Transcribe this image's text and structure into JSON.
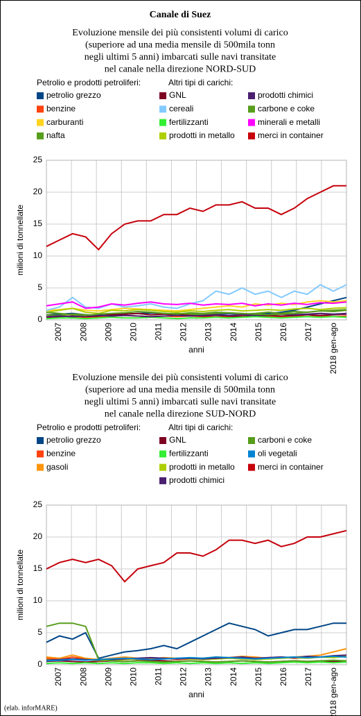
{
  "title": "Canale di Suez",
  "note": "(elab. inforMARE)",
  "chart_data": [
    {
      "type": "line",
      "subtitle": [
        "Evoluzione mensile dei più consistenti volumi di carico",
        "(superiore ad una media mensile di 500mila tonn",
        "negli ultimi 5 anni) imbarcati sulle navi transitate",
        "nel canale nella direzione NORD-SUD"
      ],
      "y_label": "milioni di tonnellate",
      "x_label": "anni",
      "categories": [
        "2007",
        "2008",
        "2009",
        "2010",
        "2011",
        "2012",
        "2013",
        "2014",
        "2015",
        "2016",
        "2017",
        "2018 gen-ago"
      ],
      "ylim": [
        0,
        25
      ],
      "yticks": [
        0,
        5,
        10,
        15,
        20,
        25
      ],
      "grid": true,
      "groups": [
        {
          "title": "Petrolio e prodotti petroliferi:",
          "series": [
            {
              "name": "petrolio grezzo",
              "color": "#004586",
              "values": [
                0.8,
                0.9,
                1,
                0.8,
                0.7,
                0.8,
                0.9,
                1,
                1.1,
                1,
                0.9,
                1,
                0.8,
                0.9,
                1,
                0.9,
                0.8,
                1,
                1.2,
                1.5,
                2,
                2.5,
                3,
                3.5
              ]
            },
            {
              "name": "benzine",
              "color": "#ff420e",
              "values": [
                0.5,
                0.6,
                0.5,
                0.4,
                0.5,
                0.6,
                0.7,
                0.6,
                0.5,
                0.6,
                0.5,
                0.6,
                0.5,
                0.4,
                0.5,
                0.6,
                0.5,
                0.6,
                0.5,
                0.6,
                0.5,
                0.6,
                0.5,
                0.6
              ]
            },
            {
              "name": "carburanti",
              "color": "#ffd320",
              "values": [
                1.5,
                1.6,
                1.8,
                1.5,
                1.4,
                1.6,
                1.8,
                1.7,
                1.6,
                1.5,
                1.4,
                1.6,
                1.8,
                2,
                2.2,
                2,
                2.5,
                2.3,
                2.6,
                2.4,
                2.8,
                3,
                2.8,
                3
              ]
            },
            {
              "name": "nafta",
              "color": "#579d1c",
              "values": [
                0.8,
                0.7,
                0.9,
                0.8,
                0.6,
                0.8,
                0.9,
                1,
                0.8,
                0.9,
                1,
                0.9,
                0.8,
                1,
                1.1,
                0.9,
                1,
                1.2,
                1,
                1.3,
                1.2,
                1.4,
                1.5,
                1.6
              ]
            }
          ]
        },
        {
          "title": "Altri tipi di carichi:",
          "series": [
            {
              "name": "GNL",
              "color": "#7e0021",
              "values": [
                0.4,
                0.5,
                0.6,
                0.5,
                0.6,
                0.8,
                0.9,
                1,
                0.8,
                0.9,
                0.8,
                0.7,
                0.6,
                0.7,
                0.6,
                0.5,
                0.6,
                0.7,
                0.6,
                0.7,
                0.8,
                0.7,
                0.8,
                0.9
              ]
            },
            {
              "name": "cereali",
              "color": "#83caff",
              "values": [
                1.5,
                2,
                3.5,
                2,
                1.8,
                2.5,
                2,
                2.2,
                2.5,
                2,
                1.8,
                2.5,
                3,
                4.5,
                4,
                5,
                4,
                4.5,
                3.5,
                4.5,
                4,
                5.5,
                4.5,
                5.5
              ]
            },
            {
              "name": "fertilizzanti",
              "color": "#33ee33",
              "values": [
                0.2,
                0.3,
                0.3,
                0.2,
                0.3,
                0.4,
                0.3,
                0.3,
                0.4,
                0.3,
                0.2,
                0.3,
                0.3,
                0.4,
                0.3,
                0.4,
                0.5,
                0.4,
                0.3,
                0.4,
                0.5,
                0.4,
                0.5,
                0.4
              ]
            },
            {
              "name": "prodotti in metallo",
              "color": "#aecf00",
              "values": [
                1.2,
                1.5,
                1.8,
                1.2,
                1,
                1.5,
                1.4,
                1.6,
                1.5,
                1.3,
                1.2,
                1.4,
                1.3,
                1.5,
                1.6,
                1.4,
                1.5,
                1.6,
                1.5,
                1.7,
                1.8,
                1.6,
                1.8,
                1.9
              ]
            },
            {
              "name": "prodotti chimici",
              "color": "#4b1f6f",
              "values": [
                0.5,
                0.6,
                0.5,
                0.6,
                0.7,
                0.6,
                0.7,
                0.6,
                0.5,
                0.6,
                0.7,
                0.6,
                0.7,
                0.8,
                0.7,
                0.8,
                0.7,
                0.8,
                0.9,
                0.8,
                0.9,
                1,
                0.9,
                1
              ]
            },
            {
              "name": "carbone e coke",
              "color": "#579d1c",
              "values": [
                1.2,
                1,
                0.8,
                0.7,
                0.9,
                1,
                1.1,
                1.3,
                1.2,
                1,
                0.9,
                1.1,
                1,
                1.2,
                1.1,
                1,
                0.9,
                0.8,
                0.9,
                1,
                1.2,
                1.4,
                1.3,
                1.5
              ]
            },
            {
              "name": "minerali e metalli",
              "color": "#ff00ff",
              "values": [
                2.2,
                2.5,
                2.8,
                1.8,
                2,
                2.5,
                2.3,
                2.6,
                2.8,
                2.5,
                2.4,
                2.6,
                2.3,
                2.5,
                2.4,
                2.6,
                2.2,
                2.5,
                2.3,
                2.6,
                2.4,
                2.7,
                2.6,
                2.8
              ]
            },
            {
              "name": "merci in container",
              "color": "#c5000b",
              "values": [
                11.5,
                12.5,
                13.5,
                13,
                11,
                13.5,
                15,
                15.5,
                15.5,
                16.5,
                16.5,
                17.5,
                17,
                18,
                18,
                18.5,
                17.5,
                17.5,
                16.5,
                17.5,
                19,
                20,
                21,
                21
              ]
            }
          ]
        }
      ]
    },
    {
      "type": "line",
      "subtitle": [
        "Evoluzione mensile dei più consistenti volumi di carico",
        "(superiore ad una media mensile di 500mila tonn",
        "negli ultimi 5 anni) imbarcati sulle navi transitate",
        "nel canale nella direzione SUD-NORD"
      ],
      "y_label": "milioni di tonnellate",
      "x_label": "anni",
      "categories": [
        "2007",
        "2008",
        "2009",
        "2010",
        "2011",
        "2012",
        "2013",
        "2014",
        "2015",
        "2016",
        "2017",
        "2018 gen-ago"
      ],
      "ylim": [
        0,
        25
      ],
      "yticks": [
        0,
        5,
        10,
        15,
        20,
        25
      ],
      "grid": true,
      "groups": [
        {
          "title": "Petrolio e prodotti petroliferi:",
          "series": [
            {
              "name": "petrolio grezzo",
              "color": "#004586",
              "values": [
                3.5,
                4.5,
                4,
                5,
                1,
                1.5,
                2,
                2.2,
                2.5,
                3,
                2.5,
                3.5,
                4.5,
                5.5,
                6.5,
                6,
                5.5,
                4.5,
                5,
                5.5,
                5.5,
                6,
                6.5,
                6.5
              ]
            },
            {
              "name": "benzine",
              "color": "#ff420e",
              "values": [
                1,
                0.8,
                1.2,
                0.9,
                0.7,
                0.9,
                1,
                0.8,
                0.9,
                1,
                0.8,
                0.9,
                1,
                1.1,
                1,
                0.9,
                1,
                1.1,
                1.2,
                1,
                1.1,
                1.2,
                1.3,
                1.4
              ]
            },
            {
              "name": "gasoli",
              "color": "#ff950e",
              "values": [
                1.2,
                1,
                1.5,
                1,
                0.8,
                1,
                1.2,
                1,
                0.9,
                1.1,
                1,
                0.9,
                1,
                1.2,
                1.1,
                1.3,
                1.2,
                1,
                1.1,
                1.2,
                1.3,
                1.5,
                2,
                2.5
              ]
            }
          ]
        },
        {
          "title": "Altri tipi di carichi:",
          "series": [
            {
              "name": "GNL",
              "color": "#7e0021",
              "values": [
                0.5,
                0.6,
                0.5,
                0.4,
                0.5,
                0.6,
                0.5,
                0.6,
                0.7,
                0.6,
                0.5,
                0.6,
                0.5,
                0.4,
                0.5,
                0.6,
                0.5,
                0.4,
                0.5,
                0.6,
                0.5,
                0.6,
                0.5,
                0.6
              ]
            },
            {
              "name": "fertilizzanti",
              "color": "#33ee33",
              "values": [
                0.2,
                0.3,
                0.2,
                0.3,
                0.2,
                0.3,
                0.2,
                0.3,
                0.3,
                0.2,
                0.3,
                0.2,
                0.3,
                0.2,
                0.3,
                0.2,
                0.3,
                0.2,
                0.3,
                0.4,
                0.3,
                0.4,
                0.3,
                0.4
              ]
            },
            {
              "name": "prodotti in metallo",
              "color": "#aecf00",
              "values": [
                0.8,
                0.7,
                0.9,
                0.8,
                0.6,
                0.7,
                0.8,
                0.9,
                0.8,
                0.9,
                1,
                0.9,
                0.8,
                0.9,
                1,
                0.9,
                0.8,
                0.9,
                1,
                1.1,
                1,
                1.2,
                1.1,
                1.3
              ]
            },
            {
              "name": "prodotti chimici",
              "color": "#4b1f6f",
              "values": [
                0.7,
                0.8,
                0.9,
                0.8,
                0.7,
                0.8,
                0.9,
                1,
                1.1,
                1,
                0.9,
                1,
                0.9,
                1,
                1.1,
                1.2,
                1,
                1.1,
                1.2,
                1.1,
                1.3,
                1.2,
                1.4,
                1.5
              ]
            },
            {
              "name": "carboni e coke",
              "color": "#579d1c",
              "values": [
                6,
                6.5,
                6.5,
                6,
                0.8,
                0.6,
                0.5,
                0.6,
                0.5,
                0.4,
                0.5,
                0.6,
                0.5,
                0.4,
                0.5,
                0.6,
                0.5,
                0.4,
                0.5,
                0.6,
                0.5,
                0.6,
                0.7,
                0.6
              ]
            },
            {
              "name": "oli vegetali",
              "color": "#0084d1",
              "values": [
                0.6,
                0.7,
                0.8,
                0.7,
                0.8,
                0.9,
                1,
                0.9,
                0.8,
                0.9,
                1,
                1.1,
                1,
                1.2,
                1.1,
                1,
                0.9,
                1,
                1.1,
                1.2,
                1.1,
                1.2,
                1.3,
                1.2
              ]
            },
            {
              "name": "merci in container",
              "color": "#c5000b",
              "values": [
                15,
                16,
                16.5,
                16,
                16.5,
                15.5,
                13,
                15,
                15.5,
                16,
                17.5,
                17.5,
                17,
                18,
                19.5,
                19.5,
                19,
                19.5,
                18.5,
                19,
                20,
                20,
                20.5,
                21
              ]
            }
          ]
        }
      ]
    }
  ]
}
